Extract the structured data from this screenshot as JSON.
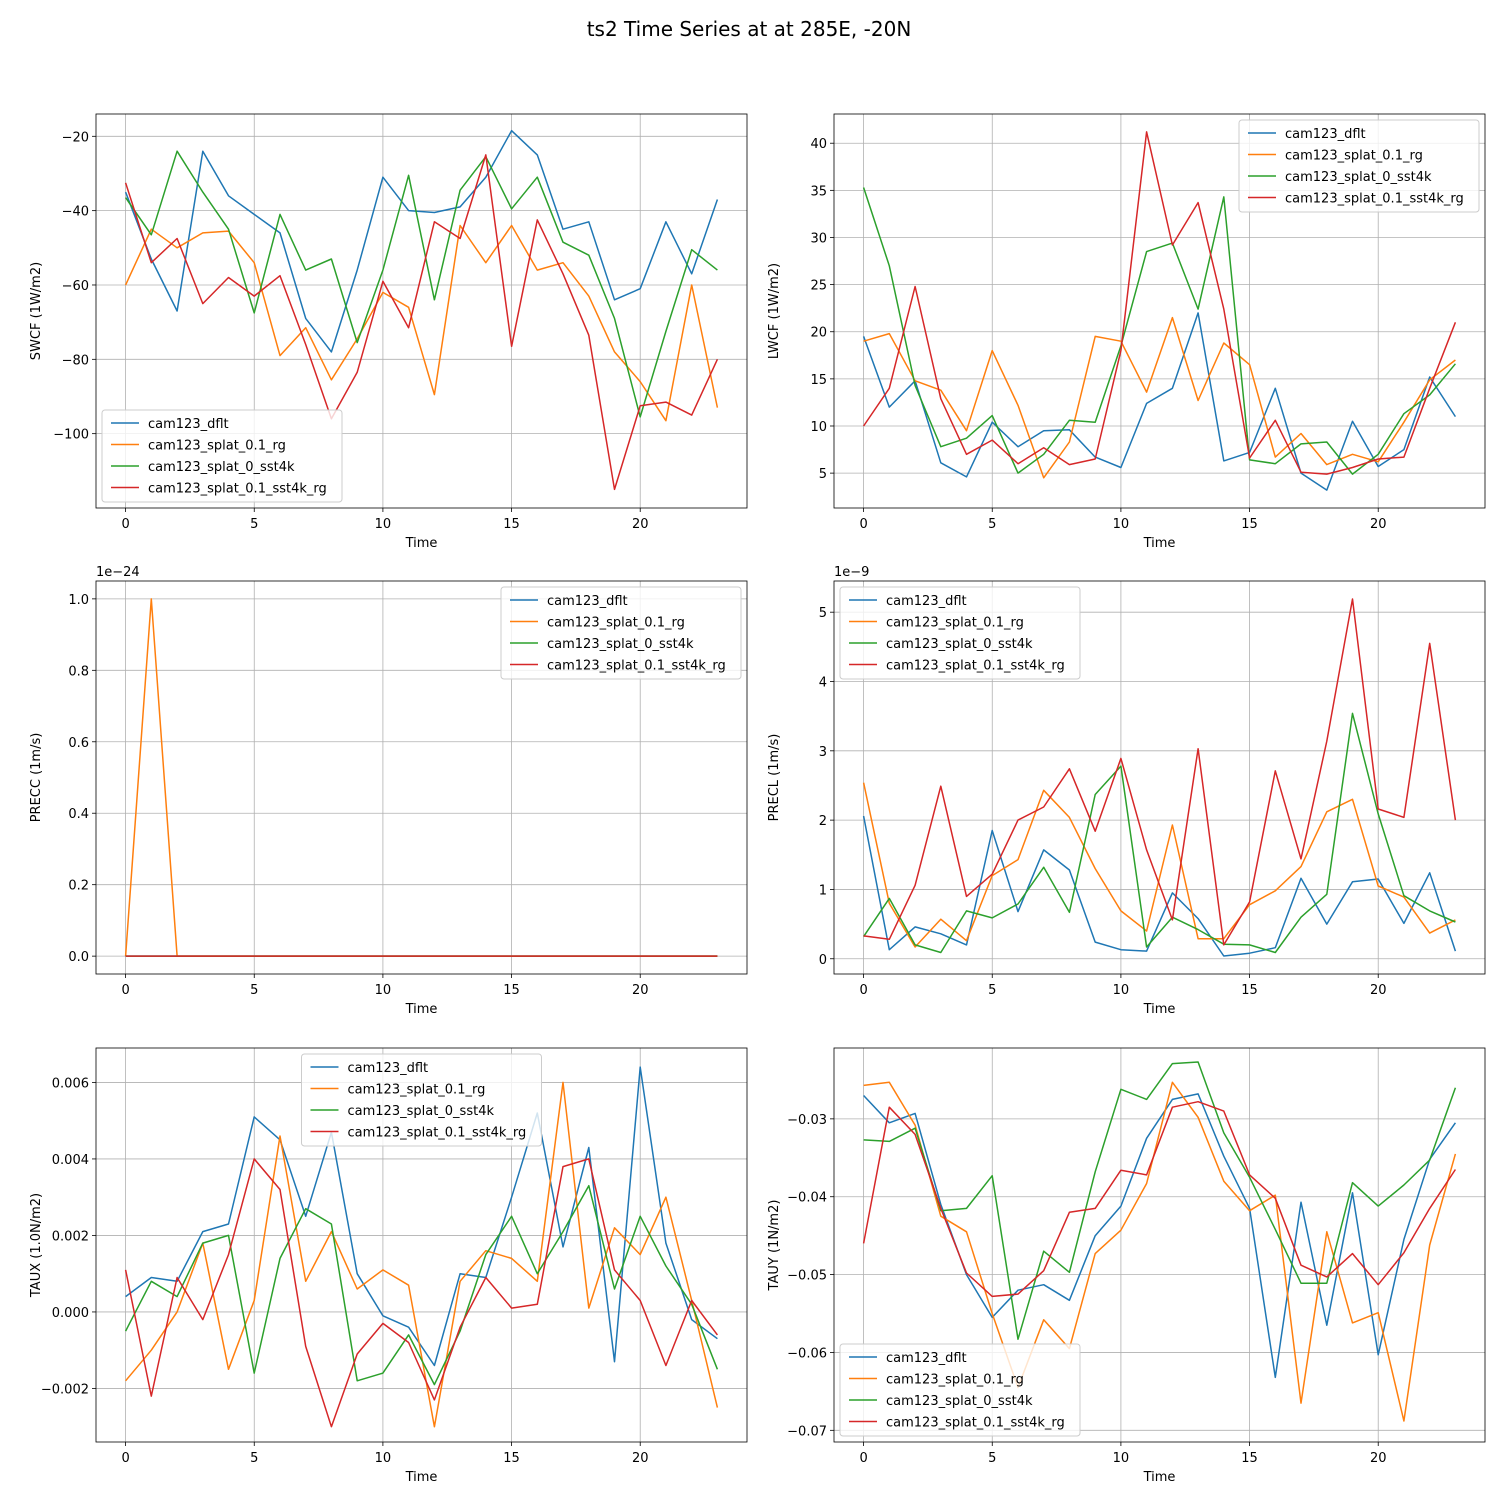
{
  "figure": {
    "title": "ts2 Time Series at at 285E, -20N"
  },
  "colors": {
    "cam123_dflt": "#1f77b4",
    "cam123_splat_0.1_rg": "#ff7f0e",
    "cam123_splat_0_sst4k": "#2ca02c",
    "cam123_splat_0.1_sst4k_rg": "#d62728"
  },
  "chart_data": [
    {
      "type": "line",
      "title": "",
      "xlabel": "Time",
      "ylabel": "SWCF (1W/m2)",
      "xlim": [
        -1.15,
        24.15
      ],
      "ylim": [
        -120,
        -14
      ],
      "xticks": [
        0,
        5,
        10,
        15,
        20
      ],
      "yticks": [
        -100,
        -80,
        -60,
        -40,
        -20
      ],
      "ytick_labels": [
        "−100",
        "−80",
        "−60",
        "−40",
        "−20"
      ],
      "offset": "",
      "legend_loc": "lower-left",
      "x": [
        0,
        1,
        2,
        3,
        4,
        5,
        6,
        7,
        8,
        9,
        10,
        11,
        12,
        13,
        14,
        15,
        16,
        17,
        18,
        19,
        20,
        21,
        22,
        23
      ],
      "series": [
        {
          "name": "cam123_dflt",
          "values": [
            -35,
            -53,
            -67,
            -24,
            -36,
            -41,
            -46,
            -69,
            -78,
            -56,
            -31,
            -40,
            -40.5,
            -39,
            -31,
            -18.5,
            -25,
            -45,
            -43,
            -64,
            -61,
            -43,
            -57,
            -37
          ]
        },
        {
          "name": "cam123_splat_0.1_rg",
          "values": [
            -60,
            -45,
            -50,
            -46,
            -45.5,
            -54,
            -79,
            -71.5,
            -85.5,
            -74.5,
            -62,
            -66,
            -89.5,
            -44,
            -54,
            -44,
            -56,
            -54,
            -63,
            -78,
            -86,
            -96.5,
            -60,
            -93
          ]
        },
        {
          "name": "cam123_splat_0_sst4k",
          "values": [
            -36.5,
            -46.5,
            -24,
            -35,
            -45,
            -67.5,
            -41,
            -56,
            -53,
            -75.5,
            -56,
            -30.5,
            -64,
            -34.5,
            -25.5,
            -39.5,
            -31,
            -48.5,
            -52,
            -69,
            -95.5,
            -72.5,
            -50.5,
            -56
          ]
        },
        {
          "name": "cam123_splat_0.1_sst4k_rg",
          "values": [
            -32.5,
            -54,
            -47.5,
            -65,
            -58,
            -63,
            -57.5,
            -76,
            -96,
            -83.5,
            -59,
            -71.5,
            -43,
            -47.5,
            -25,
            -76.5,
            -42.5,
            -57,
            -73.5,
            -115,
            -92.5,
            -91.5,
            -95,
            -80
          ]
        }
      ]
    },
    {
      "type": "line",
      "title": "",
      "xlabel": "Time",
      "ylabel": "LWCF (1W/m2)",
      "xlim": [
        -1.15,
        24.15
      ],
      "ylim": [
        1.3,
        43.1
      ],
      "xticks": [
        0,
        5,
        10,
        15,
        20
      ],
      "yticks": [
        5,
        10,
        15,
        20,
        25,
        30,
        35,
        40
      ],
      "ytick_labels": [
        "5",
        "10",
        "15",
        "20",
        "25",
        "30",
        "35",
        "40"
      ],
      "offset": "",
      "legend_loc": "upper-right",
      "x": [
        0,
        1,
        2,
        3,
        4,
        5,
        6,
        7,
        8,
        9,
        10,
        11,
        12,
        13,
        14,
        15,
        16,
        17,
        18,
        19,
        20,
        21,
        22,
        23
      ],
      "series": [
        {
          "name": "cam123_dflt",
          "values": [
            19.5,
            12,
            14.8,
            6.1,
            4.6,
            10.4,
            7.8,
            9.5,
            9.6,
            6.7,
            5.6,
            12.4,
            14,
            22,
            6.3,
            7.2,
            14,
            5,
            3.2,
            10.5,
            5.7,
            7.5,
            15.2,
            11
          ]
        },
        {
          "name": "cam123_splat_0.1_rg",
          "values": [
            19,
            19.8,
            14.8,
            13.8,
            9.5,
            18,
            12.2,
            4.5,
            8.3,
            19.5,
            19,
            13.6,
            21.5,
            12.7,
            18.8,
            16.5,
            6.7,
            9.2,
            5.9,
            7,
            6.2,
            10.4,
            14.9,
            17
          ]
        },
        {
          "name": "cam123_splat_0_sst4k",
          "values": [
            35.3,
            27,
            14.3,
            7.8,
            8.7,
            11.1,
            5,
            7,
            10.6,
            10.4,
            18.5,
            28.5,
            29.4,
            22.4,
            34.3,
            6.4,
            6,
            8.1,
            8.3,
            4.9,
            7,
            11.3,
            13.3,
            16.6
          ]
        },
        {
          "name": "cam123_splat_0.1_sst4k_rg",
          "values": [
            10,
            14,
            24.8,
            12.9,
            7,
            8.5,
            6,
            7.7,
            5.9,
            6.5,
            18,
            41.2,
            29.2,
            33.7,
            22.4,
            6.6,
            10.6,
            5.1,
            4.9,
            5.6,
            6.5,
            6.7,
            14,
            21
          ]
        }
      ]
    },
    {
      "type": "line",
      "title": "",
      "xlabel": "Time",
      "ylabel": "PRECC (1m/s)",
      "xlim": [
        -1.15,
        24.15
      ],
      "ylim": [
        -0.05,
        1.05
      ],
      "xticks": [
        0,
        5,
        10,
        15,
        20
      ],
      "yticks": [
        0,
        0.2,
        0.4,
        0.6,
        0.8,
        1.0
      ],
      "ytick_labels": [
        "0.0",
        "0.2",
        "0.4",
        "0.6",
        "0.8",
        "1.0"
      ],
      "offset": "1e−24",
      "legend_loc": "upper-right",
      "x": [
        0,
        1,
        2,
        3,
        4,
        5,
        6,
        7,
        8,
        9,
        10,
        11,
        12,
        13,
        14,
        15,
        16,
        17,
        18,
        19,
        20,
        21,
        22,
        23
      ],
      "series": [
        {
          "name": "cam123_dflt",
          "values": [
            0,
            0,
            0,
            0,
            0,
            0,
            0,
            0,
            0,
            0,
            0,
            0,
            0,
            0,
            0,
            0,
            0,
            0,
            0,
            0,
            0,
            0,
            0,
            0
          ]
        },
        {
          "name": "cam123_splat_0.1_rg",
          "values": [
            0,
            1,
            0,
            0,
            0,
            0,
            0,
            0,
            0,
            0,
            0,
            0,
            0,
            0,
            0,
            0,
            0,
            0,
            0,
            0,
            0,
            0,
            0,
            0
          ]
        },
        {
          "name": "cam123_splat_0_sst4k",
          "values": [
            0,
            0,
            0,
            0,
            0,
            0,
            0,
            0,
            0,
            0,
            0,
            0,
            0,
            0,
            0,
            0,
            0,
            0,
            0,
            0,
            0,
            0,
            0,
            0
          ]
        },
        {
          "name": "cam123_splat_0.1_sst4k_rg",
          "values": [
            0,
            0,
            0,
            0,
            0,
            0,
            0,
            0,
            0,
            0,
            0,
            0,
            0,
            0,
            0,
            0,
            0,
            0,
            0,
            0,
            0,
            0,
            0,
            0
          ]
        }
      ]
    },
    {
      "type": "line",
      "title": "",
      "xlabel": "Time",
      "ylabel": "PRECL (1m/s)",
      "xlim": [
        -1.15,
        24.15
      ],
      "ylim": [
        -0.22,
        5.45
      ],
      "xticks": [
        0,
        5,
        10,
        15,
        20
      ],
      "yticks": [
        0,
        1,
        2,
        3,
        4,
        5
      ],
      "ytick_labels": [
        "0",
        "1",
        "2",
        "3",
        "4",
        "5"
      ],
      "offset": "1e−9",
      "legend_loc": "upper-left",
      "x": [
        0,
        1,
        2,
        3,
        4,
        5,
        6,
        7,
        8,
        9,
        10,
        11,
        12,
        13,
        14,
        15,
        16,
        17,
        18,
        19,
        20,
        21,
        22,
        23
      ],
      "series": [
        {
          "name": "cam123_dflt",
          "values": [
            2.06,
            0.13,
            0.46,
            0.36,
            0.2,
            1.85,
            0.68,
            1.57,
            1.28,
            0.24,
            0.13,
            0.11,
            0.95,
            0.58,
            0.04,
            0.08,
            0.16,
            1.16,
            0.5,
            1.11,
            1.15,
            0.51,
            1.24,
            0.11
          ]
        },
        {
          "name": "cam123_splat_0.1_rg",
          "values": [
            2.54,
            0.8,
            0.17,
            0.57,
            0.26,
            1.2,
            1.43,
            2.43,
            2.04,
            1.3,
            0.69,
            0.4,
            1.93,
            0.29,
            0.29,
            0.78,
            0.98,
            1.33,
            2.12,
            2.3,
            1.05,
            0.89,
            0.37,
            0.56
          ]
        },
        {
          "name": "cam123_splat_0_sst4k",
          "values": [
            0.32,
            0.87,
            0.2,
            0.09,
            0.69,
            0.59,
            0.79,
            1.32,
            0.67,
            2.37,
            2.78,
            0.17,
            0.6,
            0.42,
            0.21,
            0.2,
            0.09,
            0.6,
            0.93,
            3.54,
            2.09,
            0.91,
            0.69,
            0.53
          ]
        },
        {
          "name": "cam123_splat_0.1_sst4k_rg",
          "values": [
            0.33,
            0.28,
            1.06,
            2.49,
            0.9,
            1.22,
            2.0,
            2.19,
            2.74,
            1.84,
            2.89,
            1.57,
            0.56,
            3.03,
            0.2,
            0.82,
            2.71,
            1.44,
            3.14,
            5.19,
            2.16,
            2.04,
            4.55,
            2.0
          ]
        }
      ]
    },
    {
      "type": "line",
      "title": "",
      "xlabel": "Time",
      "ylabel": "TAUX (1.0N/m2)",
      "xlim": [
        -1.15,
        24.15
      ],
      "ylim": [
        -0.0034,
        0.0069
      ],
      "xticks": [
        0,
        5,
        10,
        15,
        20
      ],
      "yticks": [
        -0.002,
        0,
        0.002,
        0.004,
        0.006
      ],
      "ytick_labels": [
        "−0.002",
        "0.000",
        "0.002",
        "0.004",
        "0.006"
      ],
      "offset": "",
      "legend_loc": "upper-center",
      "x": [
        0,
        1,
        2,
        3,
        4,
        5,
        6,
        7,
        8,
        9,
        10,
        11,
        12,
        13,
        14,
        15,
        16,
        17,
        18,
        19,
        20,
        21,
        22,
        23
      ],
      "series": [
        {
          "name": "cam123_dflt",
          "values": [
            0.0004,
            0.0009,
            0.0008,
            0.0021,
            0.0023,
            0.0051,
            0.0045,
            0.0025,
            0.0047,
            0.001,
            -0.0001,
            -0.0004,
            -0.0014,
            0.001,
            0.0009,
            0.003,
            0.0052,
            0.0017,
            0.0043,
            -0.0013,
            0.0064,
            0.0018,
            -0.0002,
            -0.0007
          ]
        },
        {
          "name": "cam123_splat_0.1_rg",
          "values": [
            -0.0018,
            -0.001,
            0.0,
            0.0018,
            -0.0015,
            0.0003,
            0.0046,
            0.0008,
            0.0021,
            0.0006,
            0.0011,
            0.0007,
            -0.003,
            0.0008,
            0.0016,
            0.0014,
            0.0008,
            0.006,
            0.0001,
            0.0022,
            0.0015,
            0.003,
            0.0003,
            -0.0025
          ]
        },
        {
          "name": "cam123_splat_0_sst4k",
          "values": [
            -0.0005,
            0.0008,
            0.0004,
            0.0018,
            0.002,
            -0.0016,
            0.0014,
            0.0027,
            0.0023,
            -0.0018,
            -0.0016,
            -0.0006,
            -0.0019,
            -0.0005,
            0.0015,
            0.0025,
            0.001,
            0.0021,
            0.0033,
            0.0006,
            0.0025,
            0.0012,
            0.0002,
            -0.0015
          ]
        },
        {
          "name": "cam123_splat_0.1_sst4k_rg",
          "values": [
            0.0011,
            -0.0022,
            0.0009,
            -0.0002,
            0.0015,
            0.004,
            0.0032,
            -0.0009,
            -0.003,
            -0.0011,
            -0.0003,
            -0.0008,
            -0.0023,
            -0.0004,
            0.0009,
            0.0001,
            0.0002,
            0.0038,
            0.004,
            0.0011,
            0.0003,
            -0.0014,
            0.0003,
            -0.0006
          ]
        }
      ]
    },
    {
      "type": "line",
      "title": "",
      "xlabel": "Time",
      "ylabel": "TAUY (1N/m2)",
      "xlim": [
        -1.15,
        24.15
      ],
      "ylim": [
        -0.0715,
        -0.0209
      ],
      "xticks": [
        0,
        5,
        10,
        15,
        20
      ],
      "yticks": [
        -0.07,
        -0.06,
        -0.05,
        -0.04,
        -0.03
      ],
      "ytick_labels": [
        "−0.07",
        "−0.06",
        "−0.05",
        "−0.04",
        "−0.03"
      ],
      "offset": "",
      "legend_loc": "lower-left",
      "x": [
        0,
        1,
        2,
        3,
        4,
        5,
        6,
        7,
        8,
        9,
        10,
        11,
        12,
        13,
        14,
        15,
        16,
        17,
        18,
        19,
        20,
        21,
        22,
        23
      ],
      "series": [
        {
          "name": "cam123_dflt",
          "values": [
            -0.027,
            -0.0305,
            -0.0293,
            -0.041,
            -0.05,
            -0.0555,
            -0.052,
            -0.0513,
            -0.0533,
            -0.045,
            -0.0412,
            -0.0325,
            -0.0275,
            -0.0268,
            -0.0348,
            -0.0415,
            -0.0632,
            -0.0407,
            -0.0565,
            -0.0395,
            -0.0603,
            -0.0455,
            -0.0352,
            -0.0305
          ]
        },
        {
          "name": "cam123_splat_0.1_rg",
          "values": [
            -0.0257,
            -0.0253,
            -0.0308,
            -0.0425,
            -0.0445,
            -0.055,
            -0.0645,
            -0.0558,
            -0.0595,
            -0.0473,
            -0.0443,
            -0.0383,
            -0.0253,
            -0.0298,
            -0.038,
            -0.0418,
            -0.0398,
            -0.0665,
            -0.0445,
            -0.0562,
            -0.0549,
            -0.0688,
            -0.0462,
            -0.0345
          ]
        },
        {
          "name": "cam123_splat_0_sst4k",
          "values": [
            -0.0327,
            -0.0329,
            -0.0312,
            -0.0418,
            -0.0415,
            -0.0373,
            -0.0583,
            -0.047,
            -0.0497,
            -0.0368,
            -0.0262,
            -0.0275,
            -0.0229,
            -0.0227,
            -0.0318,
            -0.0375,
            -0.0442,
            -0.0511,
            -0.0511,
            -0.0382,
            -0.0412,
            -0.0385,
            -0.0353,
            -0.026
          ]
        },
        {
          "name": "cam123_splat_0.1_sst4k_rg",
          "values": [
            -0.046,
            -0.0285,
            -0.032,
            -0.0415,
            -0.0498,
            -0.0528,
            -0.0525,
            -0.0495,
            -0.042,
            -0.0415,
            -0.0366,
            -0.0372,
            -0.0285,
            -0.0278,
            -0.029,
            -0.0372,
            -0.0402,
            -0.0488,
            -0.0503,
            -0.0473,
            -0.0513,
            -0.0472,
            -0.0415,
            -0.0365
          ]
        }
      ]
    }
  ]
}
